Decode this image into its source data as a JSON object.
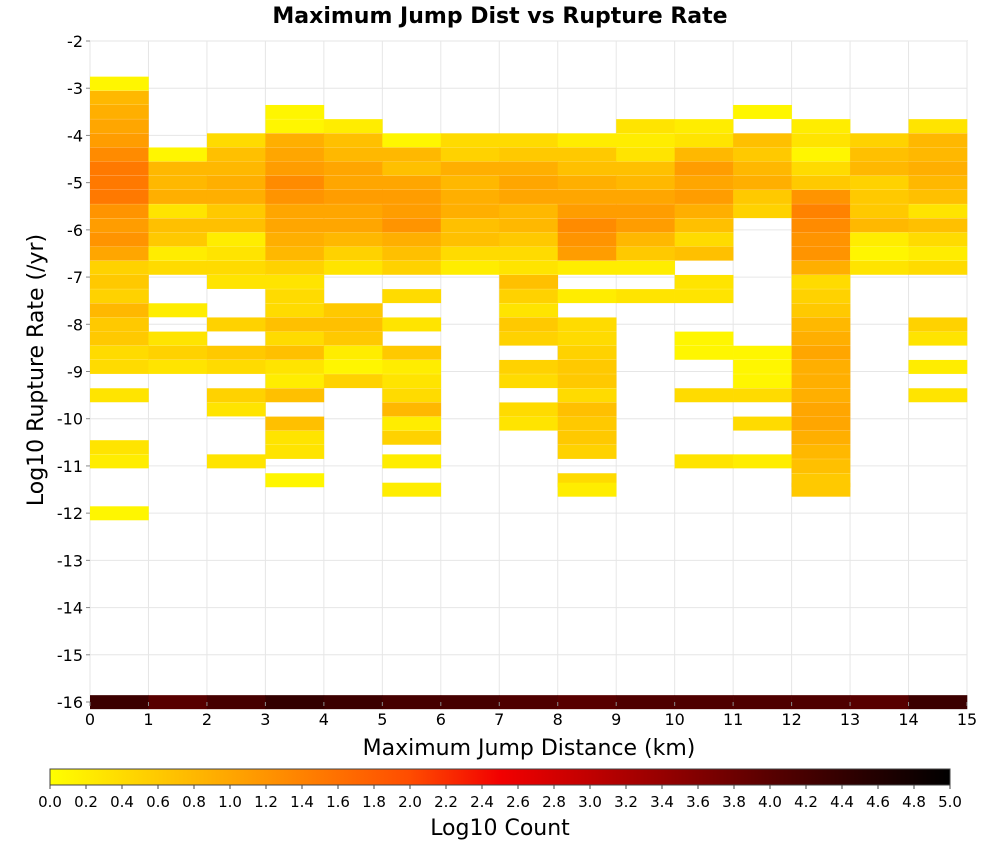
{
  "chart_data": {
    "type": "heatmap",
    "title": "Maximum Jump Dist vs Rupture Rate",
    "xlabel": "Maximum Jump Distance (km)",
    "ylabel": "Log10 Rupture Rate (/yr)",
    "xlim": [
      0,
      15
    ],
    "ylim": [
      -16,
      -2
    ],
    "x_ticks": [
      "0",
      "1",
      "2",
      "3",
      "4",
      "5",
      "6",
      "7",
      "8",
      "9",
      "10",
      "11",
      "12",
      "13",
      "14",
      "15"
    ],
    "y_ticks": [
      "-2",
      "-3",
      "-4",
      "-5",
      "-6",
      "-7",
      "-8",
      "-9",
      "-10",
      "-11",
      "-12",
      "-13",
      "-14",
      "-15",
      "-16"
    ],
    "x_bin_width": 1,
    "y_bin_height": 0.29,
    "grid": true,
    "colorbar": {
      "label": "Log10 Count",
      "range": [
        0,
        5
      ],
      "ticks": [
        "0.0",
        "0.2",
        "0.4",
        "0.6",
        "0.8",
        "1.0",
        "1.2",
        "1.4",
        "1.6",
        "1.8",
        "2.0",
        "2.2",
        "2.4",
        "2.6",
        "2.8",
        "3.0",
        "3.2",
        "3.4",
        "3.6",
        "3.8",
        "4.0",
        "4.2",
        "4.4",
        "4.6",
        "4.8",
        "5.0"
      ],
      "placement": "bottom",
      "colors": [
        "#ffff00",
        "#ffd200",
        "#ffa600",
        "#ff7900",
        "#ff4c00",
        "#f20000",
        "#c00000",
        "#8c0000",
        "#580000",
        "#2a0000",
        "#000000"
      ]
    },
    "columns": [
      {
        "x": 0,
        "cells": [
          [
            -2.9,
            0.1
          ],
          [
            -3.2,
            0.8
          ],
          [
            -3.5,
            0.9
          ],
          [
            -3.8,
            1.0
          ],
          [
            -4.1,
            1.1
          ],
          [
            -4.4,
            1.3
          ],
          [
            -4.7,
            1.5
          ],
          [
            -5.0,
            1.5
          ],
          [
            -5.3,
            1.5
          ],
          [
            -5.6,
            1.2
          ],
          [
            -5.9,
            1.1
          ],
          [
            -6.2,
            1.2
          ],
          [
            -6.5,
            1.0
          ],
          [
            -6.8,
            0.5
          ],
          [
            -7.1,
            0.6
          ],
          [
            -7.4,
            0.5
          ],
          [
            -7.7,
            0.8
          ],
          [
            -8.0,
            0.6
          ],
          [
            -8.3,
            0.6
          ],
          [
            -8.6,
            0.4
          ],
          [
            -8.9,
            0.4
          ],
          [
            -9.5,
            0.3
          ],
          [
            -10.6,
            0.3
          ],
          [
            -10.9,
            0.2
          ],
          [
            -12.0,
            0.1
          ],
          [
            -16.0,
            4.3
          ]
        ]
      },
      {
        "x": 1,
        "cells": [
          [
            -4.4,
            0.1
          ],
          [
            -4.7,
            0.8
          ],
          [
            -5.0,
            0.8
          ],
          [
            -5.3,
            0.9
          ],
          [
            -5.6,
            0.3
          ],
          [
            -5.9,
            0.7
          ],
          [
            -6.2,
            0.6
          ],
          [
            -6.5,
            0.2
          ],
          [
            -6.8,
            0.4
          ],
          [
            -7.7,
            0.2
          ],
          [
            -8.3,
            0.3
          ],
          [
            -8.6,
            0.5
          ],
          [
            -8.9,
            0.3
          ],
          [
            -16.0,
            4.0
          ]
        ]
      },
      {
        "x": 2,
        "cells": [
          [
            -4.1,
            0.4
          ],
          [
            -4.4,
            0.7
          ],
          [
            -4.7,
            0.8
          ],
          [
            -5.0,
            0.9
          ],
          [
            -5.3,
            0.9
          ],
          [
            -5.6,
            0.6
          ],
          [
            -5.9,
            0.7
          ],
          [
            -6.2,
            0.2
          ],
          [
            -6.5,
            0.3
          ],
          [
            -6.8,
            0.4
          ],
          [
            -7.1,
            0.3
          ],
          [
            -8.0,
            0.5
          ],
          [
            -8.6,
            0.6
          ],
          [
            -8.9,
            0.4
          ],
          [
            -9.5,
            0.5
          ],
          [
            -9.8,
            0.3
          ],
          [
            -10.9,
            0.3
          ],
          [
            -16.0,
            4.2
          ]
        ]
      },
      {
        "x": 3,
        "cells": [
          [
            -3.5,
            0.1
          ],
          [
            -3.8,
            0.1
          ],
          [
            -4.1,
            0.9
          ],
          [
            -4.4,
            1.0
          ],
          [
            -4.7,
            1.1
          ],
          [
            -5.0,
            1.3
          ],
          [
            -5.3,
            1.2
          ],
          [
            -5.6,
            1.0
          ],
          [
            -5.9,
            1.0
          ],
          [
            -6.2,
            0.9
          ],
          [
            -6.5,
            0.8
          ],
          [
            -6.8,
            0.5
          ],
          [
            -7.1,
            0.3
          ],
          [
            -7.4,
            0.4
          ],
          [
            -7.7,
            0.4
          ],
          [
            -8.0,
            0.7
          ],
          [
            -8.3,
            0.4
          ],
          [
            -8.6,
            0.7
          ],
          [
            -8.9,
            0.3
          ],
          [
            -9.2,
            0.2
          ],
          [
            -9.5,
            0.7
          ],
          [
            -10.1,
            0.7
          ],
          [
            -10.4,
            0.3
          ],
          [
            -10.7,
            0.3
          ],
          [
            -11.3,
            0.1
          ],
          [
            -16.0,
            4.4
          ]
        ]
      },
      {
        "x": 4,
        "cells": [
          [
            -3.8,
            0.2
          ],
          [
            -4.1,
            0.7
          ],
          [
            -4.4,
            0.8
          ],
          [
            -4.7,
            1.0
          ],
          [
            -5.0,
            1.0
          ],
          [
            -5.3,
            1.1
          ],
          [
            -5.6,
            1.0
          ],
          [
            -5.9,
            1.0
          ],
          [
            -6.2,
            0.8
          ],
          [
            -6.5,
            0.5
          ],
          [
            -6.8,
            0.3
          ],
          [
            -7.7,
            0.6
          ],
          [
            -8.0,
            0.7
          ],
          [
            -8.3,
            0.6
          ],
          [
            -8.6,
            0.2
          ],
          [
            -8.9,
            0.1
          ],
          [
            -9.2,
            0.5
          ],
          [
            -16.0,
            4.3
          ]
        ]
      },
      {
        "x": 5,
        "cells": [
          [
            -4.1,
            0.1
          ],
          [
            -4.4,
            0.8
          ],
          [
            -4.7,
            0.7
          ],
          [
            -5.0,
            1.0
          ],
          [
            -5.3,
            1.1
          ],
          [
            -5.6,
            1.1
          ],
          [
            -5.9,
            1.2
          ],
          [
            -6.2,
            0.9
          ],
          [
            -6.5,
            0.7
          ],
          [
            -6.8,
            0.5
          ],
          [
            -7.4,
            0.4
          ],
          [
            -8.0,
            0.3
          ],
          [
            -8.6,
            0.6
          ],
          [
            -8.9,
            0.2
          ],
          [
            -9.2,
            0.3
          ],
          [
            -9.5,
            0.4
          ],
          [
            -9.8,
            0.8
          ],
          [
            -10.1,
            0.2
          ],
          [
            -10.4,
            0.5
          ],
          [
            -10.9,
            0.2
          ],
          [
            -11.5,
            0.2
          ],
          [
            -16.0,
            4.2
          ]
        ]
      },
      {
        "x": 6,
        "cells": [
          [
            -4.1,
            0.4
          ],
          [
            -4.4,
            0.5
          ],
          [
            -4.7,
            0.9
          ],
          [
            -5.0,
            0.8
          ],
          [
            -5.3,
            0.9
          ],
          [
            -5.6,
            0.9
          ],
          [
            -5.9,
            0.7
          ],
          [
            -6.2,
            0.7
          ],
          [
            -6.5,
            0.4
          ],
          [
            -6.8,
            0.2
          ],
          [
            -16.0,
            4.2
          ]
        ]
      },
      {
        "x": 7,
        "cells": [
          [
            -4.1,
            0.4
          ],
          [
            -4.4,
            0.6
          ],
          [
            -4.7,
            0.9
          ],
          [
            -5.0,
            1.0
          ],
          [
            -5.3,
            1.0
          ],
          [
            -5.6,
            0.8
          ],
          [
            -5.9,
            0.8
          ],
          [
            -6.2,
            0.6
          ],
          [
            -6.5,
            0.4
          ],
          [
            -6.8,
            0.3
          ],
          [
            -7.1,
            0.7
          ],
          [
            -7.4,
            0.5
          ],
          [
            -7.7,
            0.3
          ],
          [
            -8.0,
            0.6
          ],
          [
            -8.3,
            0.5
          ],
          [
            -8.9,
            0.5
          ],
          [
            -9.2,
            0.4
          ],
          [
            -9.8,
            0.4
          ],
          [
            -10.1,
            0.3
          ],
          [
            -16.0,
            4.1
          ]
        ]
      },
      {
        "x": 8,
        "cells": [
          [
            -4.1,
            0.2
          ],
          [
            -4.4,
            0.6
          ],
          [
            -4.7,
            0.7
          ],
          [
            -5.0,
            0.9
          ],
          [
            -5.3,
            1.0
          ],
          [
            -5.6,
            1.1
          ],
          [
            -5.9,
            1.3
          ],
          [
            -6.2,
            1.2
          ],
          [
            -6.5,
            1.1
          ],
          [
            -6.8,
            0.2
          ],
          [
            -7.4,
            0.2
          ],
          [
            -8.0,
            0.4
          ],
          [
            -8.3,
            0.4
          ],
          [
            -8.6,
            0.5
          ],
          [
            -8.9,
            0.6
          ],
          [
            -9.2,
            0.6
          ],
          [
            -9.5,
            0.4
          ],
          [
            -9.8,
            0.7
          ],
          [
            -10.1,
            0.6
          ],
          [
            -10.4,
            0.6
          ],
          [
            -10.7,
            0.5
          ],
          [
            -11.3,
            0.4
          ],
          [
            -11.5,
            0.2
          ],
          [
            -16.0,
            4.0
          ]
        ]
      },
      {
        "x": 9,
        "cells": [
          [
            -3.8,
            0.3
          ],
          [
            -4.1,
            0.2
          ],
          [
            -4.4,
            0.3
          ],
          [
            -4.7,
            0.7
          ],
          [
            -5.0,
            0.8
          ],
          [
            -5.3,
            1.0
          ],
          [
            -5.6,
            1.1
          ],
          [
            -5.9,
            1.1
          ],
          [
            -6.2,
            0.8
          ],
          [
            -6.5,
            0.6
          ],
          [
            -6.8,
            0.2
          ],
          [
            -7.4,
            0.3
          ],
          [
            -16.0,
            4.1
          ]
        ]
      },
      {
        "x": 10,
        "cells": [
          [
            -3.8,
            0.2
          ],
          [
            -4.1,
            0.3
          ],
          [
            -4.4,
            0.8
          ],
          [
            -4.7,
            1.1
          ],
          [
            -5.0,
            1.0
          ],
          [
            -5.3,
            1.1
          ],
          [
            -5.6,
            0.9
          ],
          [
            -5.9,
            0.7
          ],
          [
            -6.2,
            0.4
          ],
          [
            -6.5,
            0.7
          ],
          [
            -7.1,
            0.3
          ],
          [
            -7.4,
            0.3
          ],
          [
            -8.3,
            0.1
          ],
          [
            -8.6,
            0.1
          ],
          [
            -9.5,
            0.4
          ],
          [
            -10.9,
            0.3
          ],
          [
            -16.0,
            4.1
          ]
        ]
      },
      {
        "x": 11,
        "cells": [
          [
            -3.5,
            0.1
          ],
          [
            -4.1,
            0.7
          ],
          [
            -4.4,
            0.6
          ],
          [
            -4.7,
            0.8
          ],
          [
            -5.0,
            0.9
          ],
          [
            -5.3,
            0.6
          ],
          [
            -5.6,
            0.5
          ],
          [
            -8.6,
            0.1
          ],
          [
            -8.9,
            0.1
          ],
          [
            -9.2,
            0.1
          ],
          [
            -9.5,
            0.4
          ],
          [
            -10.1,
            0.4
          ],
          [
            -10.9,
            0.2
          ],
          [
            -16.0,
            4.1
          ]
        ]
      },
      {
        "x": 12,
        "cells": [
          [
            -3.8,
            0.2
          ],
          [
            -4.1,
            0.3
          ],
          [
            -4.4,
            0.1
          ],
          [
            -4.7,
            0.4
          ],
          [
            -5.0,
            0.6
          ],
          [
            -5.3,
            1.2
          ],
          [
            -5.6,
            1.4
          ],
          [
            -5.9,
            1.3
          ],
          [
            -6.2,
            1.2
          ],
          [
            -6.5,
            1.2
          ],
          [
            -6.8,
            0.9
          ],
          [
            -7.1,
            0.4
          ],
          [
            -7.4,
            0.5
          ],
          [
            -7.7,
            0.6
          ],
          [
            -8.0,
            0.8
          ],
          [
            -8.3,
            0.9
          ],
          [
            -8.6,
            1.0
          ],
          [
            -8.9,
            0.9
          ],
          [
            -9.2,
            0.9
          ],
          [
            -9.5,
            0.9
          ],
          [
            -9.8,
            1.0
          ],
          [
            -10.1,
            1.0
          ],
          [
            -10.4,
            0.9
          ],
          [
            -10.7,
            0.8
          ],
          [
            -11.0,
            0.7
          ],
          [
            -11.3,
            0.6
          ],
          [
            -11.5,
            0.6
          ],
          [
            -16.0,
            4.1
          ]
        ]
      },
      {
        "x": 13,
        "cells": [
          [
            -4.1,
            0.5
          ],
          [
            -4.4,
            0.7
          ],
          [
            -4.7,
            0.8
          ],
          [
            -5.0,
            0.5
          ],
          [
            -5.3,
            0.6
          ],
          [
            -5.6,
            0.6
          ],
          [
            -5.9,
            0.8
          ],
          [
            -6.2,
            0.2
          ],
          [
            -6.5,
            0.1
          ],
          [
            -6.8,
            0.3
          ],
          [
            -16.0,
            4.0
          ]
        ]
      },
      {
        "x": 14,
        "cells": [
          [
            -3.8,
            0.3
          ],
          [
            -4.1,
            0.8
          ],
          [
            -4.4,
            0.8
          ],
          [
            -4.7,
            0.9
          ],
          [
            -5.0,
            0.8
          ],
          [
            -5.3,
            0.7
          ],
          [
            -5.6,
            0.3
          ],
          [
            -5.9,
            0.7
          ],
          [
            -6.2,
            0.4
          ],
          [
            -6.5,
            0.2
          ],
          [
            -6.8,
            0.4
          ],
          [
            -8.0,
            0.5
          ],
          [
            -8.3,
            0.3
          ],
          [
            -8.9,
            0.2
          ],
          [
            -9.5,
            0.3
          ],
          [
            -16.0,
            4.3
          ]
        ]
      }
    ]
  }
}
